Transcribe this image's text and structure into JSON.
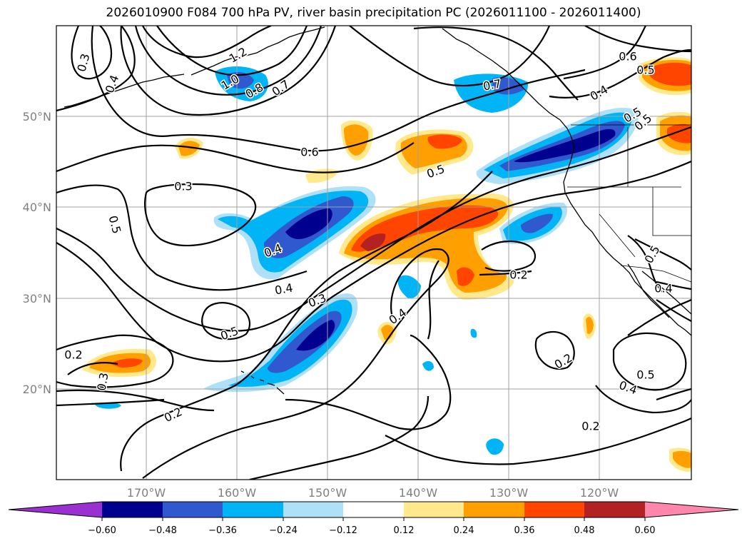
{
  "title": "2026010900 F084 700 hPa PV, river basin precipitation PC (2026011100 - 2026011400)",
  "map": {
    "lon_range": [
      -180,
      -110
    ],
    "lat_range": [
      10,
      60
    ],
    "lat_ticks": [
      {
        "value": 20,
        "label": "20°N"
      },
      {
        "value": 30,
        "label": "30°N"
      },
      {
        "value": 40,
        "label": "40°N"
      },
      {
        "value": 50,
        "label": "50°N"
      }
    ],
    "lon_ticks": [
      {
        "value": -170,
        "label": "170°W"
      },
      {
        "value": -160,
        "label": "160°W"
      },
      {
        "value": -150,
        "label": "150°W"
      },
      {
        "value": -140,
        "label": "140°W"
      },
      {
        "value": -130,
        "label": "130°W"
      },
      {
        "value": -120,
        "label": "120°W"
      }
    ],
    "grid": true
  },
  "colorbar": {
    "colors": [
      "#9a30d0",
      "#00008e",
      "#3059d0",
      "#00b4f5",
      "#aee0f8",
      "#ffffff",
      "#ffe98c",
      "#ffa000",
      "#ff4500",
      "#b22222",
      "#ff86ad"
    ],
    "tick_labels": [
      "−0.60",
      "−0.48",
      "−0.36",
      "−0.24",
      "−0.12",
      "0.12",
      "0.24",
      "0.36",
      "0.48",
      "0.60"
    ]
  },
  "contour_labels": [
    "0.3",
    "0.4",
    "1.2",
    "1.0",
    "0.8",
    "0.7",
    "0.7",
    "0.6",
    "0.5",
    "0.6",
    "0.5",
    "0.4",
    "0.5",
    "0.3",
    "0.5",
    "0.4",
    "0.4",
    "0.3",
    "0.5",
    "0.2",
    "0.4",
    "0.2",
    "0.2",
    "0.3",
    "0.2",
    "0.2",
    "0.5",
    "0.4",
    "0.5",
    "0.4",
    "0.5"
  ]
}
